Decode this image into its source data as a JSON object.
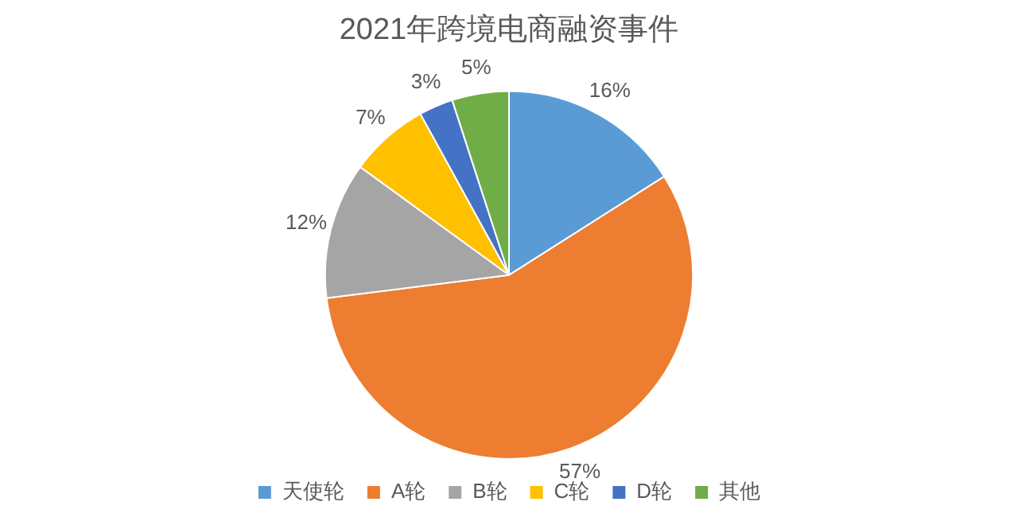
{
  "chart_data": {
    "type": "pie",
    "title": "2021年跨境电商融资事件",
    "categories": [
      "天使轮",
      "A轮",
      "B轮",
      "C轮",
      "D轮",
      "其他"
    ],
    "values": [
      16,
      57,
      12,
      7,
      3,
      5
    ],
    "colors": [
      "#5b9bd5",
      "#ed7d31",
      "#a5a5a5",
      "#ffc000",
      "#4472c4",
      "#70ad47"
    ],
    "value_labels": [
      "16%",
      "57%",
      "12%",
      "7%",
      "3%",
      "5%"
    ],
    "legend": "bottom"
  }
}
